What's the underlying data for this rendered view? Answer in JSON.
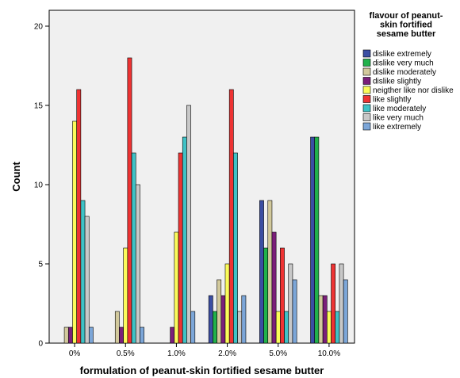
{
  "chart_data": {
    "type": "bar",
    "xlabel": "formulation of peanut-skin fortified sesame butter",
    "ylabel": "Count",
    "categories": [
      "0%",
      "0.5%",
      "1.0%",
      "2.0%",
      "5.0%",
      "10.0%"
    ],
    "ylim": [
      0,
      21
    ],
    "yticks": [
      0,
      5,
      10,
      15,
      20
    ],
    "grid": false,
    "legend_placement": "right",
    "legend_title_lines": [
      "flavour of peanut-",
      "skin fortified",
      "sesame butter"
    ],
    "series": [
      {
        "name": "dislike extremely",
        "color": "#3b4ea3",
        "values": [
          0,
          0,
          0,
          3,
          9,
          13
        ]
      },
      {
        "name": "dislike very much",
        "color": "#21b14b",
        "values": [
          0,
          0,
          0,
          2,
          6,
          13
        ]
      },
      {
        "name": "dislike moderately",
        "color": "#d2c99c",
        "values": [
          1,
          2,
          0,
          4,
          9,
          3
        ]
      },
      {
        "name": "dislike slightly",
        "color": "#7a1f7a",
        "values": [
          1,
          1,
          1,
          3,
          7,
          3
        ]
      },
      {
        "name": "neigther like nor dislike",
        "color": "#fbfb5a",
        "values": [
          14,
          6,
          7,
          5,
          2,
          2
        ]
      },
      {
        "name": "like slightly",
        "color": "#ee3333",
        "values": [
          16,
          18,
          12,
          16,
          6,
          5
        ]
      },
      {
        "name": "like moderately",
        "color": "#3fc2c6",
        "values": [
          9,
          12,
          13,
          12,
          2,
          2
        ]
      },
      {
        "name": "like very much",
        "color": "#c8c8c8",
        "values": [
          8,
          10,
          15,
          2,
          5,
          5
        ]
      },
      {
        "name": "like extremely",
        "color": "#7ca6d8",
        "values": [
          1,
          1,
          2,
          3,
          4,
          4
        ]
      }
    ],
    "background_color": "#f0f0f0"
  }
}
